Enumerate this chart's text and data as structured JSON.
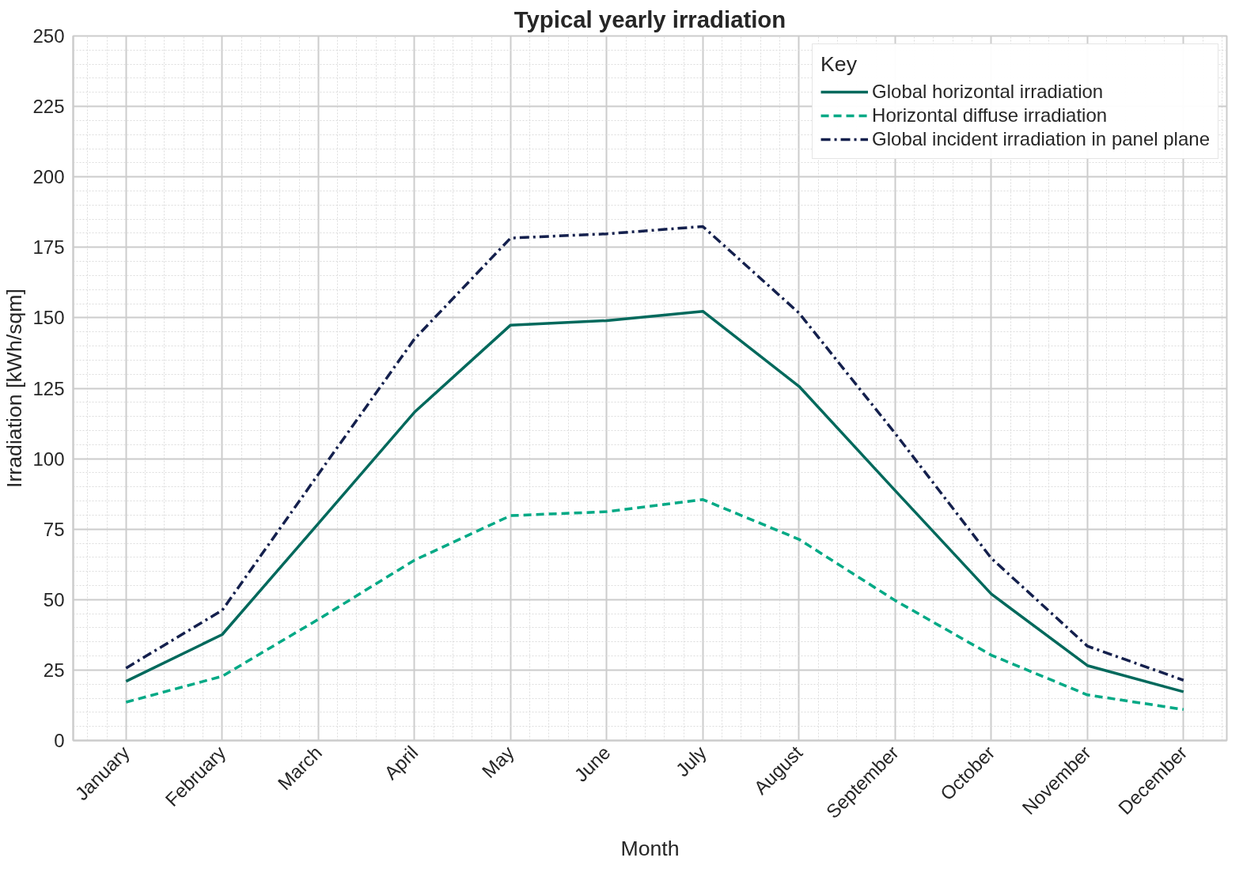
{
  "chart_data": {
    "type": "line",
    "title": "Typical yearly irradiation",
    "xlabel": "Month",
    "ylabel": "Irradiation [kWh/sqm]",
    "legend_title": "Key",
    "categories": [
      "January",
      "February",
      "March",
      "April",
      "May",
      "June",
      "July",
      "August",
      "September",
      "October",
      "November",
      "December"
    ],
    "series": [
      {
        "name": "Global horizontal irradiation",
        "color": "#00695c",
        "line_style": "solid",
        "values": [
          21,
          37.6,
          77,
          116.5,
          147.4,
          149,
          152.3,
          125.7,
          88.7,
          52,
          26.6,
          17.3
        ]
      },
      {
        "name": "Horizontal diffuse irradiation",
        "color": "#00a985",
        "line_style": "dashed",
        "values": [
          13.6,
          22.8,
          43,
          64,
          79.8,
          81.2,
          85.5,
          71.4,
          49.7,
          30.3,
          16.2,
          11
        ]
      },
      {
        "name": "Global incident irradiation in panel plane",
        "color": "#14204d",
        "line_style": "dashdot",
        "values": [
          25.7,
          46.2,
          94.5,
          142.5,
          178.3,
          179.8,
          182.4,
          151.7,
          109,
          64.7,
          33.5,
          21.4
        ]
      }
    ],
    "ylim": [
      0,
      250
    ],
    "yticks": [
      0,
      25,
      50,
      75,
      100,
      125,
      150,
      175,
      200,
      225,
      250
    ],
    "grid": true,
    "legend": "top right"
  }
}
